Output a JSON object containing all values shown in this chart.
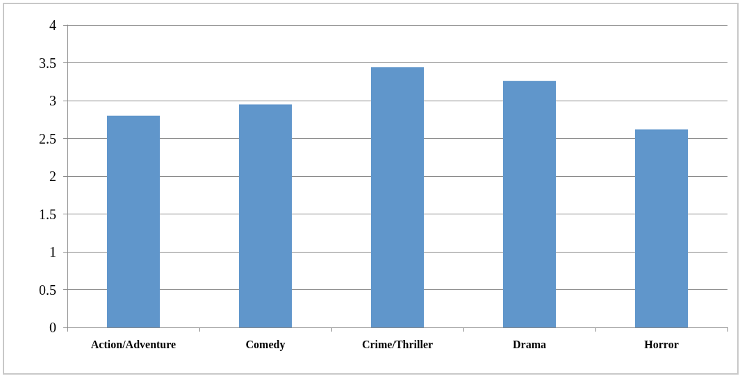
{
  "chart_data": {
    "type": "bar",
    "categories": [
      "Action/Adventure",
      "Comedy",
      "Crime/Thriller",
      "Drama",
      "Horror"
    ],
    "values": [
      2.8,
      2.95,
      3.44,
      3.26,
      2.62
    ],
    "color": "#6096cb",
    "ylim": [
      0,
      4
    ],
    "yticks": [
      0,
      0.5,
      1,
      1.5,
      2,
      2.5,
      3,
      3.5,
      4
    ],
    "grid": "y"
  }
}
